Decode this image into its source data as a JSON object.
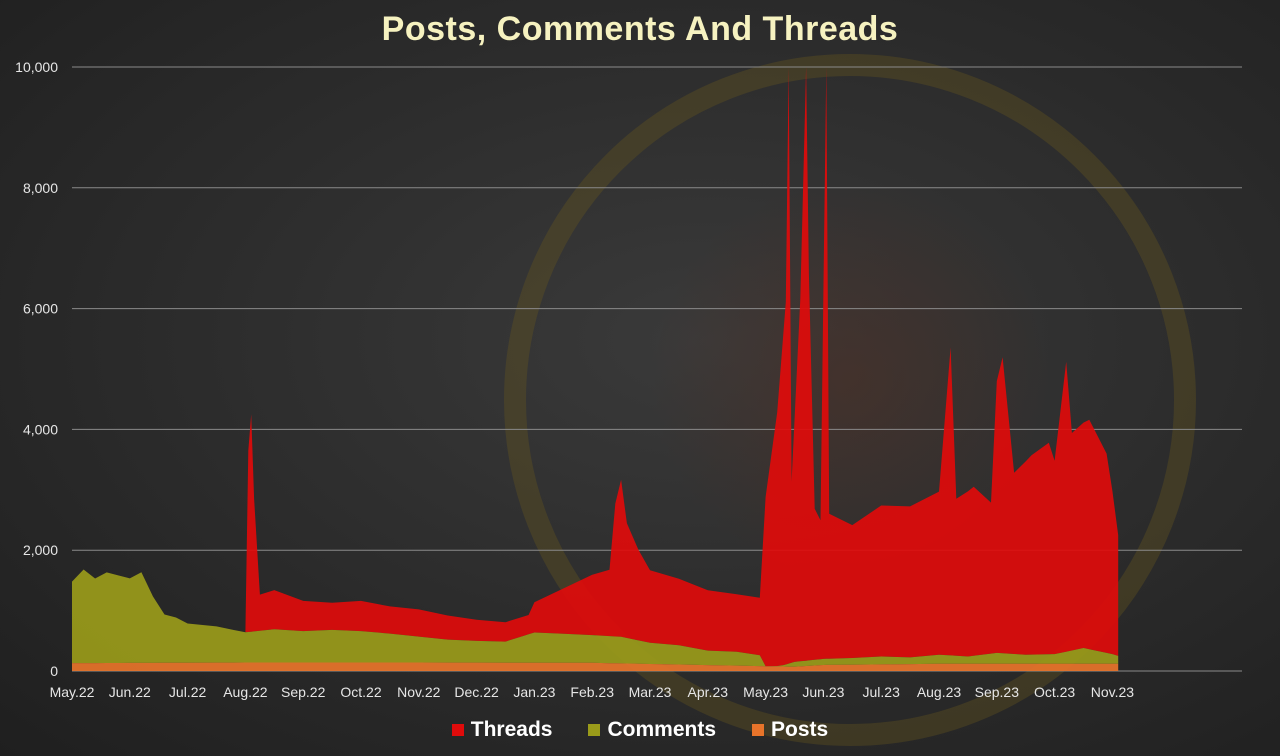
{
  "chart_data": {
    "type": "area",
    "title": "Posts, Comments And Threads",
    "ylim": [
      0,
      10000
    ],
    "yticks": [
      {
        "value": 0,
        "label": "0"
      },
      {
        "value": 2000,
        "label": "2,000"
      },
      {
        "value": 4000,
        "label": "4,000"
      },
      {
        "value": 6000,
        "label": "6,000"
      },
      {
        "value": 8000,
        "label": "8,000"
      },
      {
        "value": 10000,
        "label": "10,000"
      }
    ],
    "xticks": [
      "May.22",
      "Jun.22",
      "Jul.22",
      "Aug.22",
      "Sep.22",
      "Oct.22",
      "Nov.22",
      "Dec.22",
      "Jan.23",
      "Feb.23",
      "Mar.23",
      "Apr.23",
      "May.23",
      "Jun.23",
      "Jul.23",
      "Aug.23",
      "Sep.23",
      "Oct.23",
      "Nov.23"
    ],
    "grid": true,
    "stacked": true,
    "legend_position": "bottom",
    "x_period_index_range": [
      0,
      18.1
    ],
    "series": [
      {
        "name": "Threads",
        "color": "#e00b0b",
        "points": [
          [
            0,
            0
          ],
          [
            2.8,
            0
          ],
          [
            3.0,
            0
          ],
          [
            3.05,
            3000
          ],
          [
            3.1,
            3600
          ],
          [
            3.15,
            2200
          ],
          [
            3.25,
            600
          ],
          [
            3.5,
            650
          ],
          [
            4,
            500
          ],
          [
            4.5,
            450
          ],
          [
            5,
            500
          ],
          [
            5.5,
            450
          ],
          [
            6,
            450
          ],
          [
            6.5,
            400
          ],
          [
            7,
            350
          ],
          [
            7.5,
            320
          ],
          [
            7.9,
            320
          ],
          [
            8.0,
            500
          ],
          [
            8.5,
            750
          ],
          [
            9,
            1000
          ],
          [
            9.3,
            1100
          ],
          [
            9.4,
            2200
          ],
          [
            9.5,
            2600
          ],
          [
            9.6,
            1900
          ],
          [
            9.8,
            1500
          ],
          [
            10,
            1200
          ],
          [
            10.5,
            1100
          ],
          [
            11,
            1000
          ],
          [
            11.5,
            950
          ],
          [
            11.9,
            950
          ],
          [
            12.0,
            2800
          ],
          [
            12.2,
            4200
          ],
          [
            12.35,
            6000
          ],
          [
            12.4,
            9900
          ],
          [
            12.45,
            3000
          ],
          [
            12.6,
            6000
          ],
          [
            12.7,
            9900
          ],
          [
            12.75,
            6400
          ],
          [
            12.85,
            2500
          ],
          [
            12.95,
            2300
          ],
          [
            13.05,
            9900
          ],
          [
            13.1,
            2400
          ],
          [
            13.5,
            2200
          ],
          [
            14,
            2500
          ],
          [
            14.5,
            2500
          ],
          [
            15,
            2700
          ],
          [
            15.2,
            5100
          ],
          [
            15.3,
            2600
          ],
          [
            15.6,
            2800
          ],
          [
            15.9,
            2500
          ],
          [
            16.0,
            4500
          ],
          [
            16.1,
            4900
          ],
          [
            16.3,
            3000
          ],
          [
            16.6,
            3300
          ],
          [
            16.9,
            3500
          ],
          [
            17.0,
            3200
          ],
          [
            17.2,
            4800
          ],
          [
            17.3,
            3600
          ],
          [
            17.6,
            3800
          ],
          [
            17.9,
            3300
          ],
          [
            18.0,
            2700
          ],
          [
            18.1,
            2000
          ]
        ]
      },
      {
        "name": "Comments",
        "color": "#9a9b1a",
        "points": [
          [
            0,
            1350
          ],
          [
            0.2,
            1550
          ],
          [
            0.4,
            1400
          ],
          [
            0.6,
            1500
          ],
          [
            0.8,
            1450
          ],
          [
            1.0,
            1400
          ],
          [
            1.2,
            1500
          ],
          [
            1.4,
            1100
          ],
          [
            1.6,
            800
          ],
          [
            1.8,
            750
          ],
          [
            2.0,
            650
          ],
          [
            2.5,
            600
          ],
          [
            3.0,
            500
          ],
          [
            3.5,
            550
          ],
          [
            4.0,
            520
          ],
          [
            4.5,
            540
          ],
          [
            5.0,
            520
          ],
          [
            5.5,
            480
          ],
          [
            6.0,
            430
          ],
          [
            6.5,
            380
          ],
          [
            7.0,
            360
          ],
          [
            7.5,
            350
          ],
          [
            8.0,
            500
          ],
          [
            8.5,
            480
          ],
          [
            9.0,
            460
          ],
          [
            9.5,
            440
          ],
          [
            10.0,
            350
          ],
          [
            10.5,
            320
          ],
          [
            11.0,
            240
          ],
          [
            11.5,
            230
          ],
          [
            11.9,
            180
          ],
          [
            12.0,
            -20
          ],
          [
            12.3,
            20
          ],
          [
            12.5,
            80
          ],
          [
            13.0,
            100
          ],
          [
            13.5,
            110
          ],
          [
            14.0,
            130
          ],
          [
            14.5,
            110
          ],
          [
            15.0,
            150
          ],
          [
            15.5,
            120
          ],
          [
            16.0,
            180
          ],
          [
            16.5,
            150
          ],
          [
            17.0,
            160
          ],
          [
            17.5,
            260
          ],
          [
            18.0,
            160
          ],
          [
            18.1,
            130
          ]
        ]
      },
      {
        "name": "Posts",
        "color": "#e8742a",
        "points": [
          [
            0,
            130
          ],
          [
            3,
            140
          ],
          [
            6,
            140
          ],
          [
            9,
            135
          ],
          [
            12,
            80
          ],
          [
            12.5,
            70
          ],
          [
            13,
            100
          ],
          [
            15,
            120
          ],
          [
            18.1,
            120
          ]
        ]
      }
    ]
  }
}
